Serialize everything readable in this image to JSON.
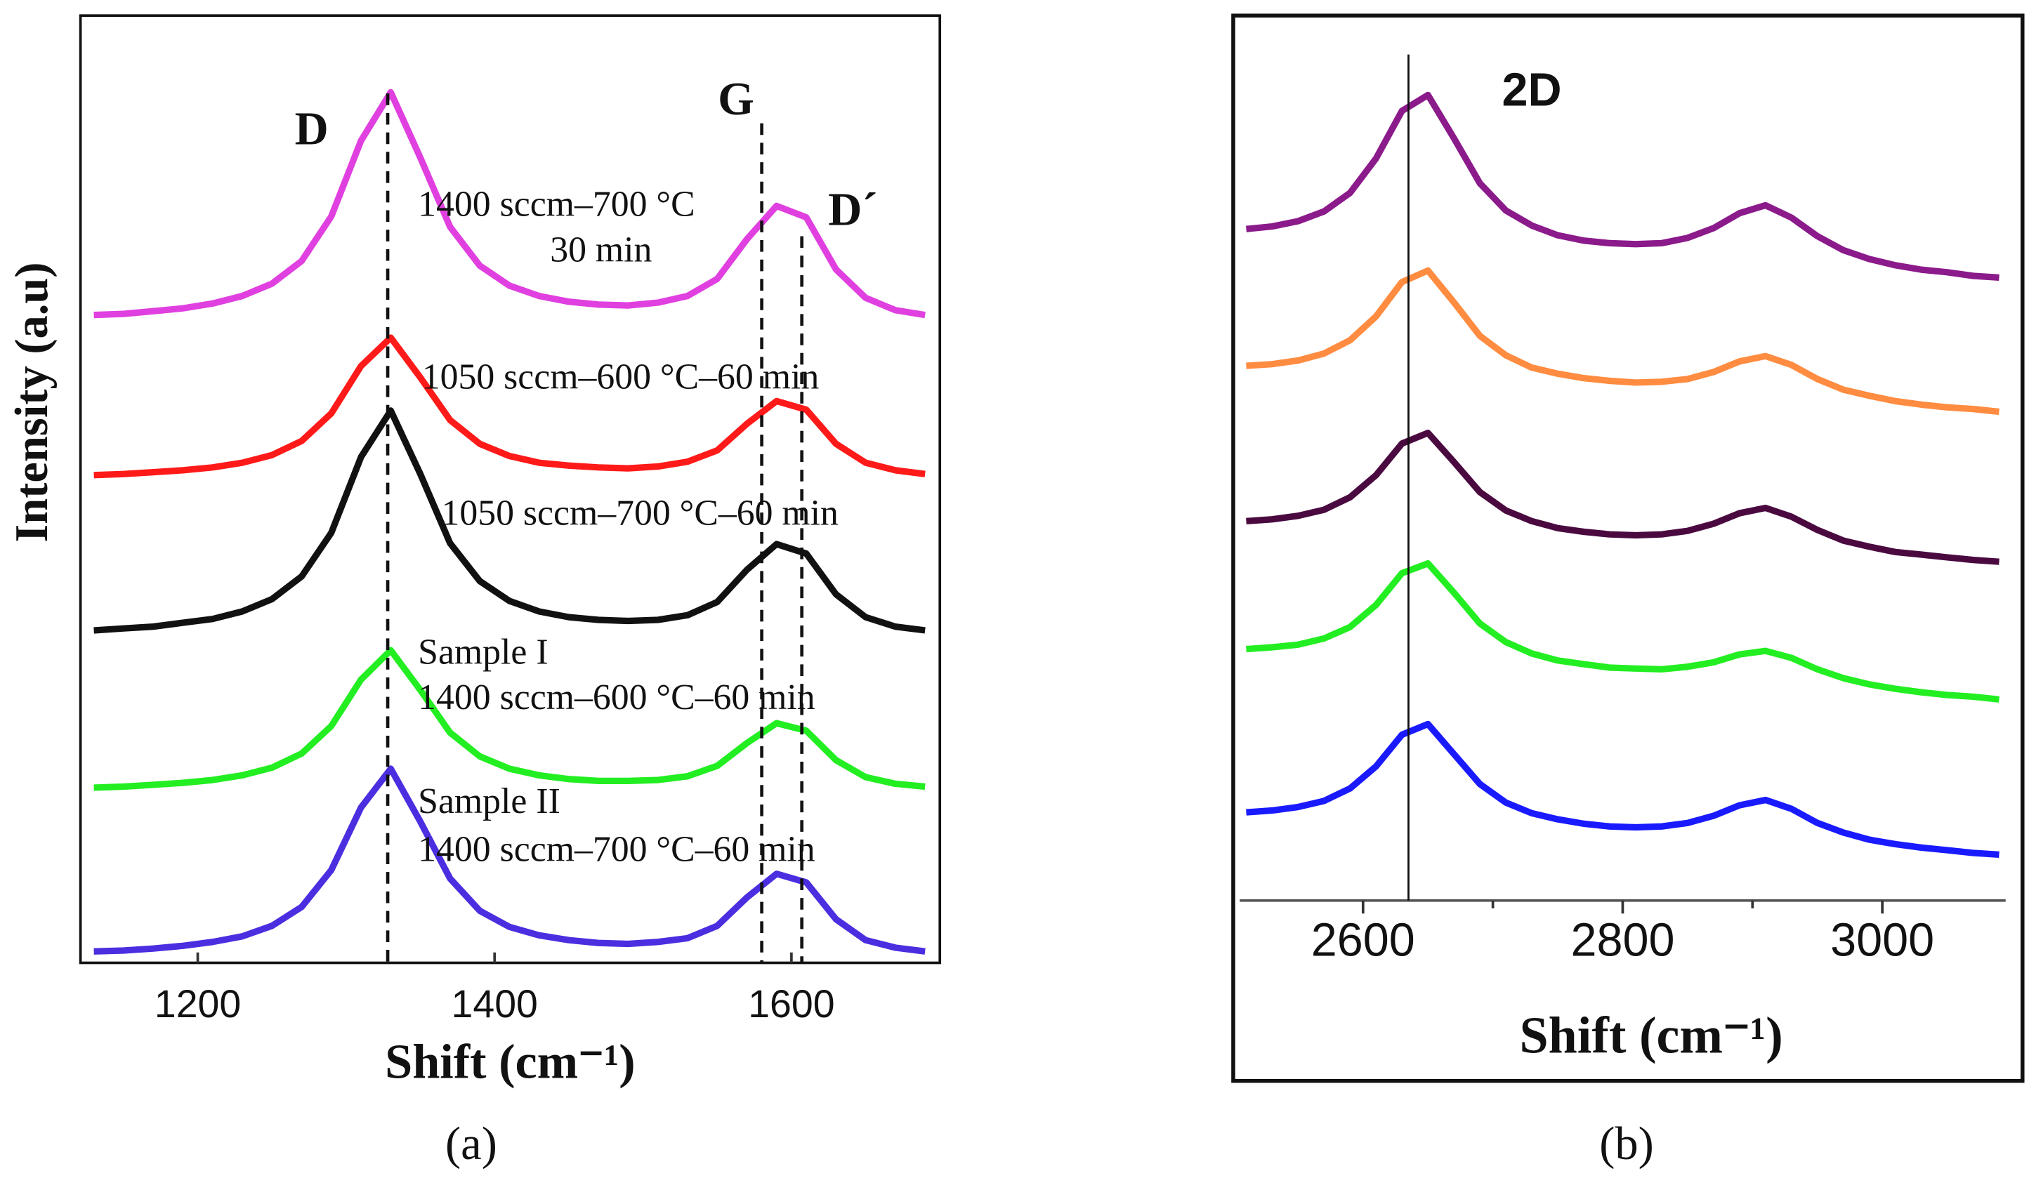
{
  "chart_data": [
    {
      "type": "line",
      "panel_label": "(a)",
      "xlabel": "Shift (cm⁻¹)",
      "ylabel": "Intensity (a.u)",
      "xlim": [
        1121,
        1700
      ],
      "ylim": [
        0,
        100
      ],
      "xticks": [
        1200,
        1400,
        1600
      ],
      "x": [
        1130,
        1150,
        1170,
        1190,
        1210,
        1230,
        1250,
        1270,
        1290,
        1310,
        1330,
        1350,
        1370,
        1390,
        1410,
        1430,
        1450,
        1470,
        1490,
        1510,
        1530,
        1550,
        1570,
        1590,
        1610,
        1630,
        1650,
        1670,
        1690
      ],
      "series": [
        {
          "color": "#e040e0",
          "values": [
            68.4,
            68.5,
            68.8,
            69.1,
            69.6,
            70.4,
            71.7,
            74.1,
            78.8,
            86.8,
            91.9,
            85.0,
            77.7,
            73.6,
            71.5,
            70.4,
            69.8,
            69.5,
            69.4,
            69.7,
            70.4,
            72.2,
            76.4,
            79.9,
            78.7,
            73.2,
            70.2,
            68.9,
            68.4
          ]
        },
        {
          "color": "#ff1a1a",
          "values": [
            51.5,
            51.6,
            51.8,
            52.0,
            52.3,
            52.8,
            53.6,
            55.1,
            58.0,
            63.0,
            66.0,
            61.8,
            57.3,
            54.8,
            53.5,
            52.8,
            52.5,
            52.3,
            52.2,
            52.4,
            52.9,
            54.1,
            56.9,
            59.3,
            58.4,
            54.8,
            52.8,
            52.0,
            51.6
          ]
        },
        {
          "color": "#111111",
          "values": [
            35.1,
            35.3,
            35.5,
            35.9,
            36.3,
            37.1,
            38.4,
            40.8,
            45.4,
            53.4,
            58.3,
            51.6,
            44.3,
            40.3,
            38.2,
            37.1,
            36.5,
            36.2,
            36.1,
            36.2,
            36.7,
            38.1,
            41.5,
            44.2,
            43.2,
            38.9,
            36.5,
            35.5,
            35.1
          ]
        },
        {
          "color": "#22ee22",
          "values": [
            18.5,
            18.6,
            18.8,
            19.0,
            19.3,
            19.8,
            20.6,
            22.1,
            25.0,
            29.9,
            33.0,
            28.8,
            24.3,
            21.8,
            20.5,
            19.8,
            19.4,
            19.2,
            19.2,
            19.3,
            19.7,
            20.8,
            23.2,
            25.3,
            24.5,
            21.4,
            19.6,
            18.9,
            18.6
          ]
        },
        {
          "color": "#4b2ee0",
          "values": [
            1.2,
            1.3,
            1.5,
            1.8,
            2.2,
            2.8,
            3.9,
            5.9,
            9.8,
            16.4,
            20.5,
            14.9,
            8.9,
            5.5,
            3.8,
            2.9,
            2.4,
            2.1,
            2.0,
            2.2,
            2.6,
            3.9,
            6.9,
            9.4,
            8.5,
            4.6,
            2.4,
            1.6,
            1.2
          ]
        }
      ],
      "reference_lines": [
        {
          "x": 1328,
          "label": "D"
        },
        {
          "x": 1580,
          "label": "G"
        },
        {
          "x": 1607,
          "label": "D´"
        }
      ],
      "annotations": [
        "1400 sccm–700 °C",
        "30 min",
        "1050 sccm–600 °C–60 min",
        "1050 sccm–700 °C–60 min",
        "Sample I",
        "1400 sccm–600 °C–60 min",
        "Sample II",
        "1400 sccm–700 °C–60 min"
      ]
    },
    {
      "type": "line",
      "panel_label": "(b)",
      "xlabel": "Shift (cm⁻¹)",
      "xlim": [
        2505,
        3095
      ],
      "ylim": [
        0,
        100
      ],
      "xticks": [
        2600,
        2800,
        3000
      ],
      "xminorticks": [
        2700,
        2900
      ],
      "x": [
        2510,
        2530,
        2550,
        2570,
        2590,
        2610,
        2630,
        2650,
        2670,
        2690,
        2710,
        2730,
        2750,
        2770,
        2790,
        2810,
        2830,
        2850,
        2870,
        2890,
        2910,
        2930,
        2950,
        2970,
        2990,
        3010,
        3030,
        3050,
        3070,
        3090
      ],
      "series": [
        {
          "color": "#8b1a8b",
          "values": [
            76.1,
            76.4,
            77.0,
            78.1,
            80.2,
            84.1,
            89.5,
            91.3,
            86.4,
            81.3,
            78.2,
            76.5,
            75.4,
            74.8,
            74.5,
            74.4,
            74.5,
            75.1,
            76.2,
            77.9,
            78.8,
            77.4,
            75.3,
            73.7,
            72.7,
            72.0,
            71.5,
            71.2,
            70.8,
            70.6
          ]
        },
        {
          "color": "#ff8c40",
          "values": [
            60.6,
            60.8,
            61.2,
            62.0,
            63.5,
            66.2,
            70.1,
            71.4,
            67.8,
            64.0,
            61.8,
            60.4,
            59.7,
            59.2,
            58.9,
            58.7,
            58.8,
            59.1,
            59.9,
            61.1,
            61.7,
            60.7,
            59.1,
            57.9,
            57.2,
            56.6,
            56.2,
            55.9,
            55.7,
            55.4
          ]
        },
        {
          "color": "#4a0a40",
          "values": [
            43.0,
            43.2,
            43.6,
            44.3,
            45.7,
            48.2,
            51.8,
            53.0,
            49.7,
            46.3,
            44.2,
            43.0,
            42.2,
            41.8,
            41.5,
            41.4,
            41.5,
            41.9,
            42.7,
            43.9,
            44.5,
            43.5,
            42.0,
            40.8,
            40.1,
            39.5,
            39.2,
            38.9,
            38.6,
            38.4
          ]
        },
        {
          "color": "#22ee22",
          "values": [
            28.5,
            28.7,
            29.0,
            29.7,
            31.0,
            33.5,
            37.1,
            38.2,
            34.9,
            31.4,
            29.3,
            28.0,
            27.2,
            26.8,
            26.4,
            26.3,
            26.2,
            26.5,
            27.0,
            27.9,
            28.3,
            27.5,
            26.2,
            25.2,
            24.5,
            24.0,
            23.6,
            23.3,
            23.1,
            22.8
          ]
        },
        {
          "color": "#1a1aff",
          "values": [
            10.0,
            10.2,
            10.6,
            11.3,
            12.7,
            15.2,
            18.8,
            20.0,
            16.6,
            13.2,
            11.1,
            9.9,
            9.2,
            8.7,
            8.4,
            8.3,
            8.4,
            8.8,
            9.6,
            10.8,
            11.4,
            10.4,
            8.8,
            7.7,
            6.9,
            6.4,
            6.0,
            5.7,
            5.4,
            5.2
          ]
        }
      ],
      "reference_lines": [
        {
          "x": 2635,
          "label": "2D"
        }
      ]
    }
  ]
}
